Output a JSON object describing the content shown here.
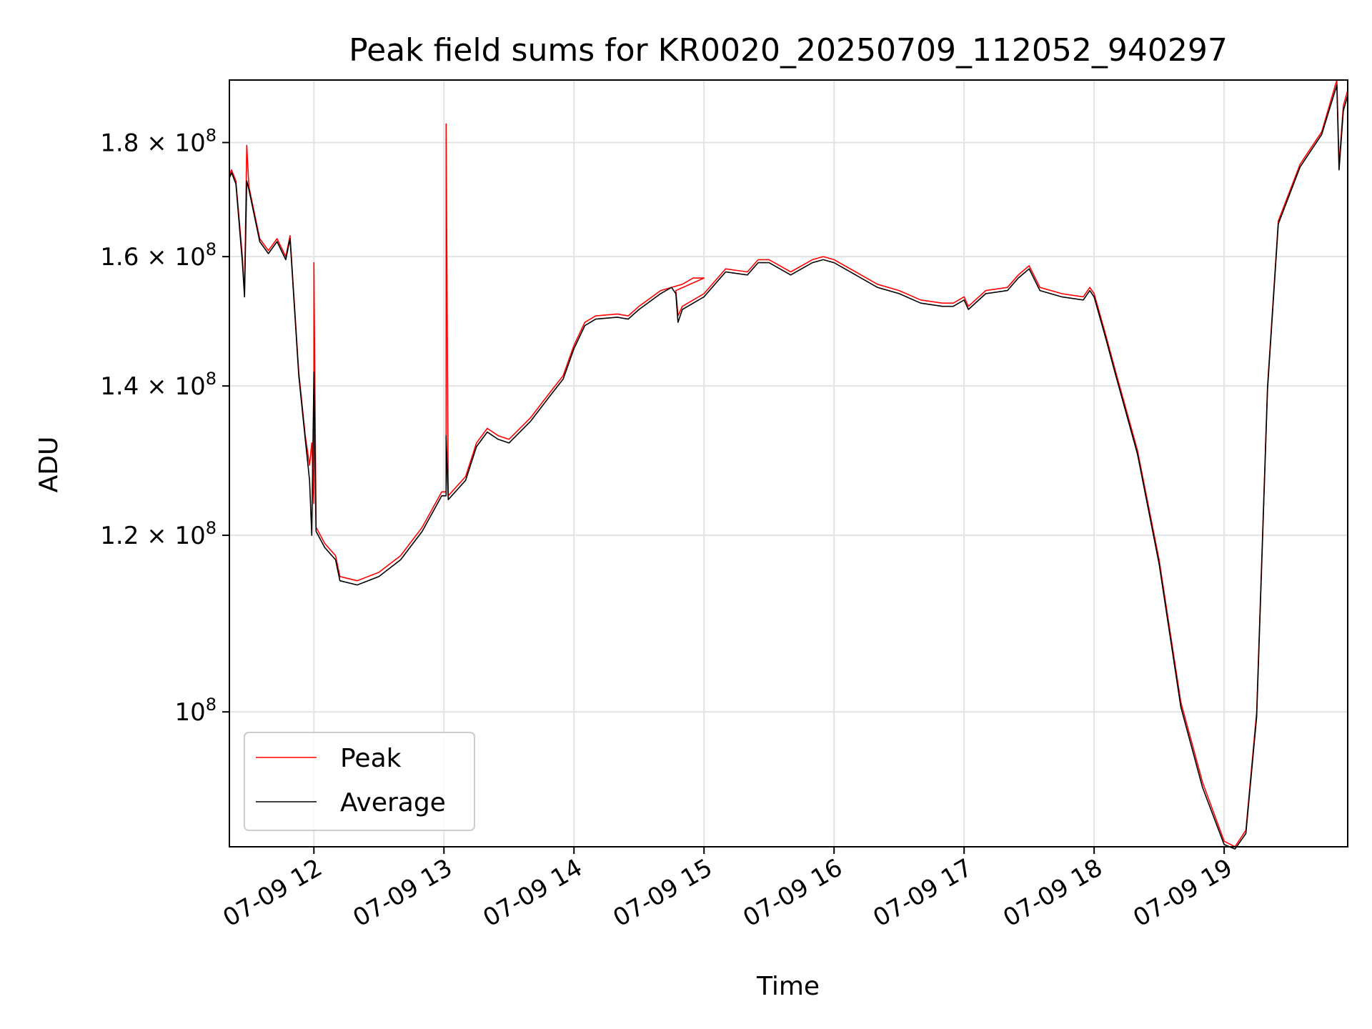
{
  "chart_data": {
    "type": "line",
    "title": "Peak field sums for KR0020_20250709_112052_940297",
    "xlabel": "Time",
    "ylabel": "ADU",
    "x_ticks": [
      "07-09 12",
      "07-09 13",
      "07-09 14",
      "07-09 15",
      "07-09 16",
      "07-09 17",
      "07-09 18",
      "07-09 19"
    ],
    "y_ticks": [
      {
        "value": 100000000,
        "mantissa": "",
        "exp": "8"
      },
      {
        "value": 120000000,
        "mantissa": "1.2",
        "exp": "8"
      },
      {
        "value": 140000000,
        "mantissa": "1.4",
        "exp": "8"
      },
      {
        "value": 160000000,
        "mantissa": "1.6",
        "exp": "8"
      },
      {
        "value": 180000000,
        "mantissa": "1.8",
        "exp": "8"
      }
    ],
    "y_scale": "log",
    "xlim": [
      "2025-07-09 11:21",
      "2025-07-09 19:57"
    ],
    "ylim": [
      87000000,
      192000000
    ],
    "grid": true,
    "legend_position": "lower-left",
    "series": [
      {
        "name": "Peak",
        "color": "#ff0000",
        "points": [
          [
            "2025-07-09 11:21",
            174000000
          ],
          [
            "2025-07-09 11:22",
            175000000
          ],
          [
            "2025-07-09 11:24",
            173000000
          ],
          [
            "2025-07-09 11:27",
            160000000
          ],
          [
            "2025-07-09 11:28",
            154000000
          ],
          [
            "2025-07-09 11:29",
            179500000
          ],
          [
            "2025-07-09 11:30",
            172000000
          ],
          [
            "2025-07-09 11:35",
            163000000
          ],
          [
            "2025-07-09 11:39",
            161000000
          ],
          [
            "2025-07-09 11:43",
            163000000
          ],
          [
            "2025-07-09 11:47",
            160000000
          ],
          [
            "2025-07-09 11:49",
            163500000
          ],
          [
            "2025-07-09 11:53",
            142000000
          ],
          [
            "2025-07-09 11:56",
            133000000
          ],
          [
            "2025-07-09 11:58",
            129000000
          ],
          [
            "2025-07-09 11:59",
            132000000
          ],
          [
            "2025-07-09 12:00",
            124000000
          ],
          [
            "2025-07-09 12:00",
            159000000
          ],
          [
            "2025-07-09 12:01",
            121000000
          ],
          [
            "2025-07-09 12:05",
            119000000
          ],
          [
            "2025-07-09 12:10",
            117500000
          ],
          [
            "2025-07-09 12:12",
            115000000
          ],
          [
            "2025-07-09 12:20",
            114500000
          ],
          [
            "2025-07-09 12:30",
            115500000
          ],
          [
            "2025-07-09 12:40",
            117500000
          ],
          [
            "2025-07-09 12:50",
            121000000
          ],
          [
            "2025-07-09 12:59",
            125500000
          ],
          [
            "2025-07-09 13:01",
            125500000
          ],
          [
            "2025-07-09 13:01",
            183500000
          ],
          [
            "2025-07-09 13:02",
            125000000
          ],
          [
            "2025-07-09 13:10",
            127500000
          ],
          [
            "2025-07-09 13:15",
            132000000
          ],
          [
            "2025-07-09 13:20",
            134000000
          ],
          [
            "2025-07-09 13:25",
            133000000
          ],
          [
            "2025-07-09 13:30",
            132500000
          ],
          [
            "2025-07-09 13:40",
            135500000
          ],
          [
            "2025-07-09 13:50",
            139500000
          ],
          [
            "2025-07-09 13:55",
            141500000
          ],
          [
            "2025-07-09 14:00",
            146000000
          ],
          [
            "2025-07-09 14:05",
            149500000
          ],
          [
            "2025-07-09 14:10",
            150500000
          ],
          [
            "2025-07-09 14:20",
            150800000
          ],
          [
            "2025-07-09 14:25",
            150500000
          ],
          [
            "2025-07-09 14:30",
            152000000
          ],
          [
            "2025-07-09 14:40",
            154500000
          ],
          [
            "2025-07-09 14:50",
            155500000
          ],
          [
            "2025-07-09 14:55",
            156500000
          ],
          [
            "2025-07-09 15:00",
            156500000
          ],
          [
            "2025-07-09 14:47",
            154500000
          ],
          [
            "2025-07-09 14:48",
            150500000
          ],
          [
            "2025-07-09 14:50",
            152000000
          ],
          [
            "2025-07-09 15:00",
            154000000
          ],
          [
            "2025-07-09 15:10",
            158000000
          ],
          [
            "2025-07-09 15:20",
            157500000
          ],
          [
            "2025-07-09 15:25",
            159500000
          ],
          [
            "2025-07-09 15:30",
            159500000
          ],
          [
            "2025-07-09 15:35",
            158500000
          ],
          [
            "2025-07-09 15:40",
            157500000
          ],
          [
            "2025-07-09 15:50",
            159500000
          ],
          [
            "2025-07-09 15:55",
            160000000
          ],
          [
            "2025-07-09 16:00",
            159500000
          ],
          [
            "2025-07-09 16:10",
            157500000
          ],
          [
            "2025-07-09 16:20",
            155500000
          ],
          [
            "2025-07-09 16:30",
            154500000
          ],
          [
            "2025-07-09 16:40",
            153000000
          ],
          [
            "2025-07-09 16:50",
            152500000
          ],
          [
            "2025-07-09 16:55",
            152500000
          ],
          [
            "2025-07-09 17:00",
            153500000
          ],
          [
            "2025-07-09 17:02",
            152000000
          ],
          [
            "2025-07-09 17:10",
            154500000
          ],
          [
            "2025-07-09 17:20",
            155000000
          ],
          [
            "2025-07-09 17:25",
            157000000
          ],
          [
            "2025-07-09 17:30",
            158500000
          ],
          [
            "2025-07-09 17:35",
            155000000
          ],
          [
            "2025-07-09 17:45",
            154000000
          ],
          [
            "2025-07-09 17:55",
            153500000
          ],
          [
            "2025-07-09 17:58",
            155000000
          ],
          [
            "2025-07-09 18:00",
            154000000
          ],
          [
            "2025-07-09 18:05",
            148000000
          ],
          [
            "2025-07-09 18:10",
            142000000
          ],
          [
            "2025-07-09 18:20",
            131000000
          ],
          [
            "2025-07-09 18:30",
            117000000
          ],
          [
            "2025-07-09 18:40",
            101000000
          ],
          [
            "2025-07-09 18:50",
            93000000
          ],
          [
            "2025-07-09 19:00",
            87500000
          ],
          [
            "2025-07-09 19:05",
            87000000
          ],
          [
            "2025-07-09 19:10",
            88500000
          ],
          [
            "2025-07-09 19:15",
            100000000
          ],
          [
            "2025-07-09 19:20",
            140000000
          ],
          [
            "2025-07-09 19:25",
            166000000
          ],
          [
            "2025-07-09 19:35",
            176000000
          ],
          [
            "2025-07-09 19:45",
            182000000
          ],
          [
            "2025-07-09 19:52",
            192000000
          ],
          [
            "2025-07-09 19:53",
            176000000
          ],
          [
            "2025-07-09 19:55",
            187000000
          ],
          [
            "2025-07-09 19:57",
            190000000
          ]
        ]
      },
      {
        "name": "Average",
        "color": "#000000",
        "points": [
          [
            "2025-07-09 11:21",
            173500000
          ],
          [
            "2025-07-09 11:22",
            174500000
          ],
          [
            "2025-07-09 11:24",
            172500000
          ],
          [
            "2025-07-09 11:27",
            159000000
          ],
          [
            "2025-07-09 11:28",
            153500000
          ],
          [
            "2025-07-09 11:29",
            173000000
          ],
          [
            "2025-07-09 11:30",
            171500000
          ],
          [
            "2025-07-09 11:35",
            162500000
          ],
          [
            "2025-07-09 11:39",
            160500000
          ],
          [
            "2025-07-09 11:43",
            162500000
          ],
          [
            "2025-07-09 11:47",
            159500000
          ],
          [
            "2025-07-09 11:49",
            163000000
          ],
          [
            "2025-07-09 11:53",
            141500000
          ],
          [
            "2025-07-09 11:56",
            132500000
          ],
          [
            "2025-07-09 11:58",
            127000000
          ],
          [
            "2025-07-09 11:59",
            120000000
          ],
          [
            "2025-07-09 12:00",
            142000000
          ],
          [
            "2025-07-09 12:01",
            120500000
          ],
          [
            "2025-07-09 12:05",
            118500000
          ],
          [
            "2025-07-09 12:10",
            117000000
          ],
          [
            "2025-07-09 12:12",
            114500000
          ],
          [
            "2025-07-09 12:20",
            114000000
          ],
          [
            "2025-07-09 12:30",
            115000000
          ],
          [
            "2025-07-09 12:40",
            117000000
          ],
          [
            "2025-07-09 12:50",
            120500000
          ],
          [
            "2025-07-09 12:59",
            125000000
          ],
          [
            "2025-07-09 13:01",
            125000000
          ],
          [
            "2025-07-09 13:01",
            133000000
          ],
          [
            "2025-07-09 13:02",
            124500000
          ],
          [
            "2025-07-09 13:10",
            127000000
          ],
          [
            "2025-07-09 13:15",
            131500000
          ],
          [
            "2025-07-09 13:20",
            133500000
          ],
          [
            "2025-07-09 13:25",
            132500000
          ],
          [
            "2025-07-09 13:30",
            132000000
          ],
          [
            "2025-07-09 13:40",
            135000000
          ],
          [
            "2025-07-09 13:50",
            139000000
          ],
          [
            "2025-07-09 13:55",
            141000000
          ],
          [
            "2025-07-09 14:00",
            145500000
          ],
          [
            "2025-07-09 14:05",
            149000000
          ],
          [
            "2025-07-09 14:10",
            150000000
          ],
          [
            "2025-07-09 14:20",
            150300000
          ],
          [
            "2025-07-09 14:25",
            150000000
          ],
          [
            "2025-07-09 14:30",
            151500000
          ],
          [
            "2025-07-09 14:40",
            154000000
          ],
          [
            "2025-07-09 14:45",
            155000000
          ],
          [
            "2025-07-09 14:47",
            154000000
          ],
          [
            "2025-07-09 14:48",
            149500000
          ],
          [
            "2025-07-09 14:50",
            151500000
          ],
          [
            "2025-07-09 15:00",
            153500000
          ],
          [
            "2025-07-09 15:10",
            157500000
          ],
          [
            "2025-07-09 15:20",
            157000000
          ],
          [
            "2025-07-09 15:25",
            159000000
          ],
          [
            "2025-07-09 15:30",
            159000000
          ],
          [
            "2025-07-09 15:35",
            158000000
          ],
          [
            "2025-07-09 15:40",
            157000000
          ],
          [
            "2025-07-09 15:50",
            159000000
          ],
          [
            "2025-07-09 15:55",
            159500000
          ],
          [
            "2025-07-09 16:00",
            159000000
          ],
          [
            "2025-07-09 16:10",
            157000000
          ],
          [
            "2025-07-09 16:20",
            155000000
          ],
          [
            "2025-07-09 16:30",
            154000000
          ],
          [
            "2025-07-09 16:40",
            152500000
          ],
          [
            "2025-07-09 16:50",
            152000000
          ],
          [
            "2025-07-09 16:55",
            152000000
          ],
          [
            "2025-07-09 17:00",
            153000000
          ],
          [
            "2025-07-09 17:02",
            151500000
          ],
          [
            "2025-07-09 17:10",
            154000000
          ],
          [
            "2025-07-09 17:20",
            154500000
          ],
          [
            "2025-07-09 17:25",
            156500000
          ],
          [
            "2025-07-09 17:30",
            158000000
          ],
          [
            "2025-07-09 17:35",
            154500000
          ],
          [
            "2025-07-09 17:45",
            153500000
          ],
          [
            "2025-07-09 17:55",
            153000000
          ],
          [
            "2025-07-09 17:58",
            154500000
          ],
          [
            "2025-07-09 18:00",
            153500000
          ],
          [
            "2025-07-09 18:05",
            147500000
          ],
          [
            "2025-07-09 18:10",
            141500000
          ],
          [
            "2025-07-09 18:20",
            130500000
          ],
          [
            "2025-07-09 18:30",
            116500000
          ],
          [
            "2025-07-09 18:40",
            100500000
          ],
          [
            "2025-07-09 18:50",
            92500000
          ],
          [
            "2025-07-09 19:00",
            87200000
          ],
          [
            "2025-07-09 19:05",
            86800000
          ],
          [
            "2025-07-09 19:10",
            88200000
          ],
          [
            "2025-07-09 19:15",
            99500000
          ],
          [
            "2025-07-09 19:20",
            139500000
          ],
          [
            "2025-07-09 19:25",
            165500000
          ],
          [
            "2025-07-09 19:35",
            175500000
          ],
          [
            "2025-07-09 19:45",
            181500000
          ],
          [
            "2025-07-09 19:52",
            191000000
          ],
          [
            "2025-07-09 19:53",
            175000000
          ],
          [
            "2025-07-09 19:55",
            186000000
          ],
          [
            "2025-07-09 19:57",
            189000000
          ]
        ]
      }
    ]
  }
}
